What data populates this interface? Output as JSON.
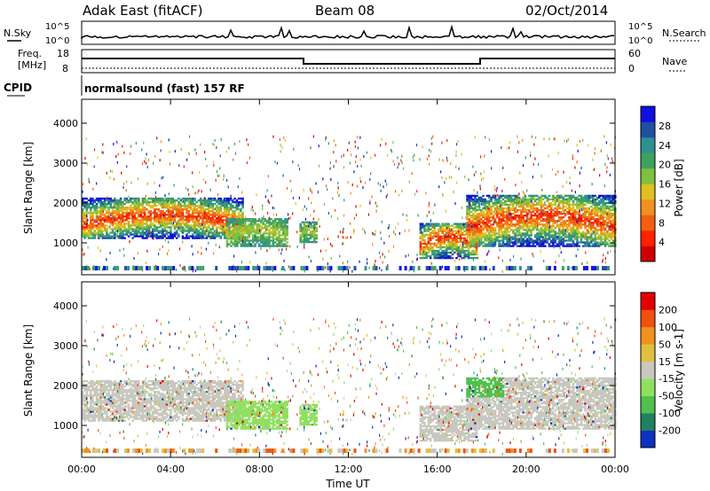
{
  "header": {
    "radar": "Adak East (fitACF)",
    "beam": "Beam 08",
    "date": "02/Oct/2014"
  },
  "noise_panel": {
    "left_label": "N.Sky",
    "right_label": "N.Search",
    "left_ticks": [
      "10^5",
      "10^0"
    ],
    "right_ticks": [
      "10^5",
      "10^0"
    ]
  },
  "freq_panel": {
    "left_label_line1": "Freq.",
    "left_label_line2": "[MHz]",
    "right_label": "Nave",
    "left_ticks": [
      "18",
      "8"
    ],
    "right_ticks": [
      "60",
      "0"
    ]
  },
  "cpid": {
    "label": "CPID",
    "value": "normalsound (fast) 157 RF"
  },
  "colors": {
    "power_scale": [
      "#1010e0",
      "#2050a0",
      "#309090",
      "#40a060",
      "#80c040",
      "#e0c020",
      "#f09020",
      "#f06010",
      "#ff2000",
      "#d00000"
    ],
    "velocity_scale": [
      "#1030c0",
      "#208060",
      "#50c050",
      "#90e060",
      "#c8c8c0",
      "#e0c040",
      "#f09020",
      "#f05010",
      "#e00000"
    ]
  },
  "chart_data": [
    {
      "type": "heatmap",
      "panel": "power",
      "ylabel": "Slant Range [km]",
      "yticks": [
        "1000",
        "2000",
        "3000",
        "4000"
      ],
      "ylim": [
        200,
        4600
      ],
      "xlim": [
        0,
        24
      ],
      "colorbar_label": "Power [dB]",
      "colorbar_ticks": [
        "4",
        "8",
        "12",
        "16",
        "20",
        "24",
        "28"
      ],
      "regions": [
        {
          "t": [
            0.0,
            7.2
          ],
          "range": [
            1100,
            2100
          ],
          "level": "high"
        },
        {
          "t": [
            6.5,
            9.2
          ],
          "range": [
            900,
            1600
          ],
          "level": "mid"
        },
        {
          "t": [
            9.8,
            10.6
          ],
          "range": [
            1000,
            1500
          ],
          "level": "mid"
        },
        {
          "t": [
            15.2,
            17.8
          ],
          "range": [
            600,
            1500
          ],
          "level": "high"
        },
        {
          "t": [
            17.3,
            24.0
          ],
          "range": [
            900,
            2200
          ],
          "level": "high"
        }
      ]
    },
    {
      "type": "heatmap",
      "panel": "velocity",
      "ylabel": "Slant Range [km]",
      "yticks": [
        "1000",
        "2000",
        "3000",
        "4000"
      ],
      "ylim": [
        200,
        4600
      ],
      "xlim": [
        0,
        24
      ],
      "colorbar_label": "Velocity [m s-1]",
      "colorbar_ticks": [
        "200",
        "100",
        "50",
        "15",
        "-15",
        "-50",
        "-100",
        "-200"
      ],
      "xticks": [
        "00:00",
        "04:00",
        "08:00",
        "12:00",
        "16:00",
        "20:00",
        "00:00"
      ],
      "xlabel": "Time UT"
    }
  ]
}
